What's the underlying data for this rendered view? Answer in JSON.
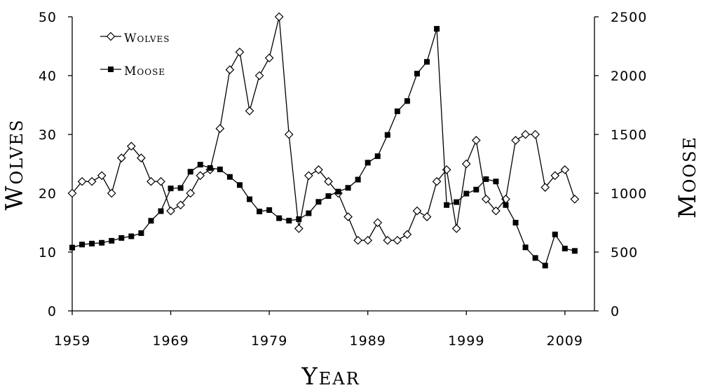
{
  "chart_data": {
    "type": "line",
    "title": "",
    "xlabel": "Year",
    "ylabel_left": "Wolves",
    "ylabel_right": "Moose",
    "x": [
      1959,
      1960,
      1961,
      1962,
      1963,
      1964,
      1965,
      1966,
      1967,
      1968,
      1969,
      1970,
      1971,
      1972,
      1973,
      1974,
      1975,
      1976,
      1977,
      1978,
      1979,
      1980,
      1981,
      1982,
      1983,
      1984,
      1985,
      1986,
      1987,
      1988,
      1989,
      1990,
      1991,
      1992,
      1993,
      1994,
      1995,
      1996,
      1997,
      1998,
      1999,
      2000,
      2001,
      2002,
      2003,
      2004,
      2005,
      2006,
      2007,
      2008,
      2009,
      2010,
      2011
    ],
    "xticks": [
      "1959",
      "1969",
      "1979",
      "1989",
      "1999",
      "2009"
    ],
    "xlim": [
      1959,
      2012
    ],
    "ylim_left": [
      0,
      50
    ],
    "yticks_left": [
      "0",
      "10",
      "20",
      "30",
      "40",
      "50"
    ],
    "ylim_right": [
      0,
      2500
    ],
    "yticks_right": [
      "0",
      "500",
      "1000",
      "1500",
      "2000",
      "2500"
    ],
    "series": [
      {
        "name": "Wolves",
        "axis": "left",
        "marker": "open-diamond",
        "values": [
          20,
          22,
          22,
          23,
          20,
          26,
          28,
          26,
          22,
          22,
          17,
          18,
          20,
          23,
          24,
          31,
          41,
          44,
          34,
          40,
          43,
          50,
          30,
          14,
          23,
          24,
          22,
          20,
          16,
          12,
          12,
          15,
          12,
          12,
          13,
          17,
          16,
          22,
          24,
          14,
          25,
          29,
          19,
          17,
          19,
          29,
          30,
          30,
          21,
          23,
          24,
          19,
          null
        ]
      },
      {
        "name": "Moose",
        "axis": "right",
        "marker": "filled-square",
        "values": [
          538,
          564,
          572,
          579,
          596,
          620,
          634,
          661,
          766,
          848,
          1041,
          1045,
          1183,
          1243,
          1215,
          1203,
          1139,
          1070,
          949,
          845,
          857,
          788,
          767,
          780,
          830,
          927,
          976,
          1014,
          1046,
          1116,
          1260,
          1315,
          1496,
          1697,
          1784,
          2017,
          2117,
          2398,
          900,
          925,
          997,
          1031,
          1120,
          1100,
          900,
          750,
          540,
          450,
          385,
          650,
          530,
          510,
          null
        ]
      }
    ],
    "legend": [
      {
        "label": "Wolves",
        "marker": "open-diamond"
      },
      {
        "label": "Moose",
        "marker": "filled-square"
      }
    ],
    "legend_position": "top-left"
  }
}
